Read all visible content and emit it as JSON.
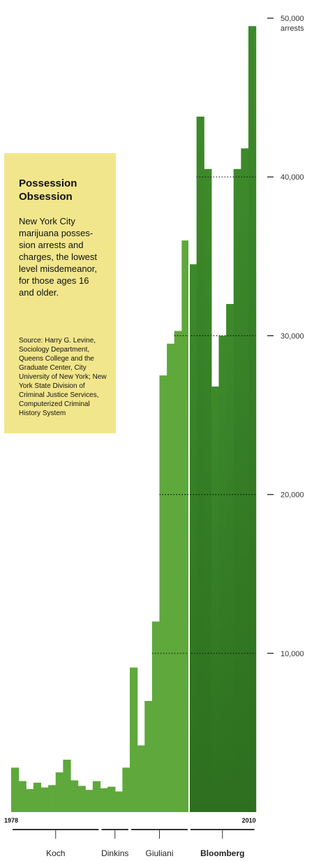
{
  "info_box": {
    "title": "Possession Obsession",
    "description": "New York City marijuana posses-sion arrests and charges, the lowest level misdemeanor, for those ages 16 and older.",
    "source": "Source: Harry G. Levine, Sociology Department, Queens College and the Graduate Center, City University of New York; New York State Division of Criminal Justice Services, Computerized Criminal History System"
  },
  "colors": {
    "bar_light": "#5fa83b",
    "bar_dark": "#3d8a2b",
    "bar_dark_bottom": "#2d6f1f",
    "box": "#f2e68c"
  },
  "chart_data": {
    "type": "bar",
    "title": "Possession Obsession",
    "x": [
      1978,
      1979,
      1980,
      1981,
      1982,
      1983,
      1984,
      1985,
      1986,
      1987,
      1988,
      1989,
      1990,
      1991,
      1992,
      1993,
      1994,
      1995,
      1996,
      1997,
      1998,
      1999,
      2000,
      2001,
      2002,
      2003,
      2004,
      2005,
      2006,
      2007,
      2008,
      2009,
      2010
    ],
    "values": [
      2800,
      1950,
      1450,
      1850,
      1550,
      1700,
      2500,
      3300,
      2000,
      1650,
      1400,
      1950,
      1500,
      1600,
      1300,
      2800,
      9100,
      4200,
      7000,
      12000,
      27500,
      29500,
      30300,
      36000,
      34500,
      43800,
      40500,
      26800,
      30000,
      32000,
      40500,
      41800,
      49500
    ],
    "x_endpoint_labels": [
      "1978",
      "2010"
    ],
    "y_ticks": [
      {
        "value": 10000,
        "label": "10,000"
      },
      {
        "value": 20000,
        "label": "20,000"
      },
      {
        "value": 30000,
        "label": "30,000"
      },
      {
        "value": 40000,
        "label": "40,000"
      },
      {
        "value": 50000,
        "label": "50,000",
        "unit": "arrests"
      }
    ],
    "ylim": [
      0,
      50000
    ],
    "bloomberg_start_year": 2002,
    "administrations": [
      {
        "name": "Koch",
        "start": 1978,
        "end": 1989,
        "bold": false
      },
      {
        "name": "Dinkins",
        "start": 1990,
        "end": 1993,
        "bold": false
      },
      {
        "name": "Giuliani",
        "start": 1994,
        "end": 2001,
        "bold": false
      },
      {
        "name": "Bloomberg",
        "start": 2002,
        "end": 2010,
        "bold": true
      }
    ]
  }
}
